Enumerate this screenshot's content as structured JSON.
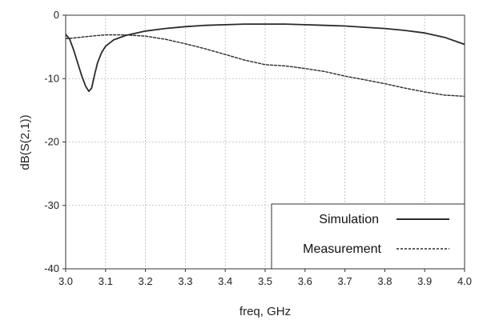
{
  "chart_data": {
    "type": "line",
    "title": "",
    "xlabel": "freq, GHz",
    "ylabel": "dB(S(2,1))",
    "xlim": [
      3.0,
      4.0
    ],
    "ylim": [
      -40,
      0
    ],
    "x_ticks": [
      "3.0",
      "3.1",
      "3.2",
      "3.3",
      "3.4",
      "3.5",
      "3.6",
      "3.7",
      "3.8",
      "3.9",
      "4.0"
    ],
    "y_ticks": [
      "0",
      "-10",
      "-20",
      "-30",
      "-40"
    ],
    "grid": true,
    "legend_position": "bottom-right",
    "series": [
      {
        "name": "Simulation",
        "style": "solid",
        "color": "#2a2a2a",
        "x": [
          3.0,
          3.01,
          3.02,
          3.03,
          3.04,
          3.05,
          3.058,
          3.065,
          3.072,
          3.08,
          3.09,
          3.1,
          3.12,
          3.15,
          3.2,
          3.25,
          3.3,
          3.35,
          3.4,
          3.45,
          3.5,
          3.55,
          3.6,
          3.65,
          3.7,
          3.75,
          3.8,
          3.85,
          3.9,
          3.95,
          4.0
        ],
        "y": [
          -3.0,
          -3.8,
          -5.5,
          -7.5,
          -9.5,
          -11.2,
          -12.0,
          -11.5,
          -9.5,
          -7.5,
          -5.9,
          -4.9,
          -3.9,
          -3.2,
          -2.5,
          -2.1,
          -1.8,
          -1.6,
          -1.5,
          -1.4,
          -1.4,
          -1.4,
          -1.5,
          -1.6,
          -1.7,
          -1.9,
          -2.1,
          -2.4,
          -2.8,
          -3.5,
          -4.6
        ]
      },
      {
        "name": "Measurement",
        "style": "dashed",
        "color": "#2a2a2a",
        "x": [
          3.0,
          3.02,
          3.05,
          3.08,
          3.1,
          3.12,
          3.15,
          3.2,
          3.25,
          3.3,
          3.35,
          3.4,
          3.45,
          3.5,
          3.55,
          3.6,
          3.65,
          3.7,
          3.75,
          3.8,
          3.85,
          3.9,
          3.95,
          4.0
        ],
        "y": [
          -3.7,
          -3.6,
          -3.4,
          -3.2,
          -3.1,
          -3.1,
          -3.1,
          -3.3,
          -3.8,
          -4.5,
          -5.3,
          -6.2,
          -7.1,
          -7.8,
          -8.0,
          -8.4,
          -8.9,
          -9.6,
          -10.2,
          -10.8,
          -11.5,
          -12.1,
          -12.6,
          -12.8
        ]
      }
    ]
  }
}
